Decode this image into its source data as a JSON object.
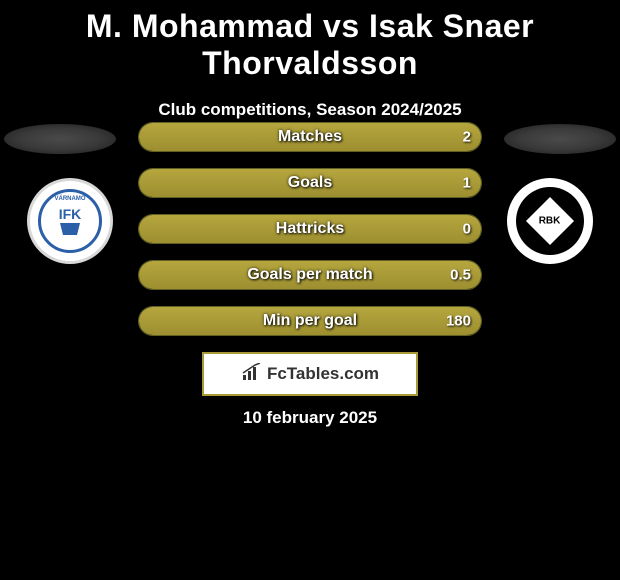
{
  "title": "M. Mohammad vs Isak Snaer Thorvaldsson",
  "subtitle": "Club competitions, Season 2024/2025",
  "date": "10 february 2025",
  "brand": "FcTables.com",
  "colors": {
    "background": "#000000",
    "bar_fill_top": "#b5a63e",
    "bar_fill_bottom": "#9d8f30",
    "bar_border": "#a0a03c",
    "brand_border": "#a89a36",
    "brand_bg": "#ffffff",
    "text": "#ffffff",
    "crest_left_primary": "#2b5fa8",
    "crest_right_bg": "#000000"
  },
  "crest_left": {
    "text": "IFK",
    "band": "VÄRNAMO"
  },
  "crest_right": {
    "text": "RBK"
  },
  "bars": [
    {
      "label": "Matches",
      "left": "",
      "right": "2",
      "left_pct": 0,
      "right_pct": 100
    },
    {
      "label": "Goals",
      "left": "",
      "right": "1",
      "left_pct": 0,
      "right_pct": 100
    },
    {
      "label": "Hattricks",
      "left": "",
      "right": "0",
      "left_pct": 0,
      "right_pct": 100
    },
    {
      "label": "Goals per match",
      "left": "",
      "right": "0.5",
      "left_pct": 0,
      "right_pct": 100
    },
    {
      "label": "Min per goal",
      "left": "",
      "right": "180",
      "left_pct": 0,
      "right_pct": 100
    }
  ]
}
